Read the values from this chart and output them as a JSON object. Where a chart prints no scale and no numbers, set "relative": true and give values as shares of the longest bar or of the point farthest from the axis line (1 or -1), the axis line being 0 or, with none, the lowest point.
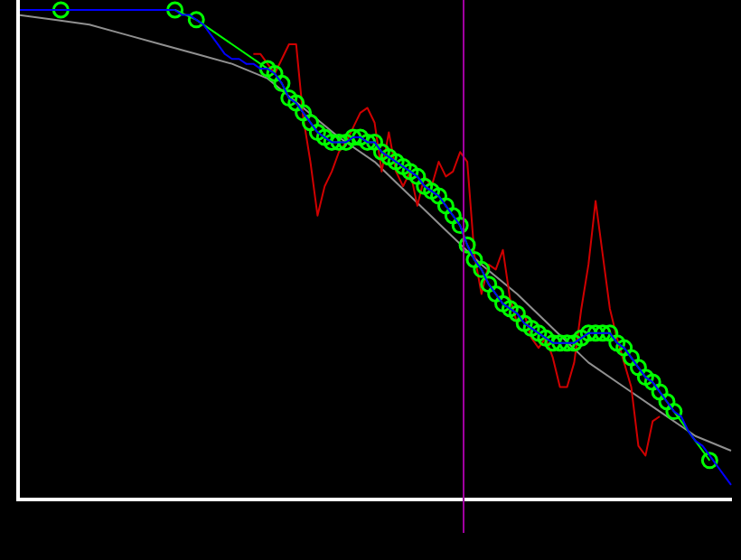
{
  "chart_data": {
    "type": "line",
    "relative": true,
    "grid": false,
    "legend": false,
    "categories": [
      null,
      null,
      null,
      null,
      null,
      null,
      null,
      null,
      null,
      null,
      null,
      null,
      null,
      null,
      null,
      null,
      null,
      null,
      null,
      null,
      null,
      null,
      null,
      null,
      null,
      null,
      null,
      null,
      null,
      null,
      null,
      null,
      null,
      null,
      null,
      null,
      null,
      null,
      null,
      null,
      null,
      null,
      null,
      null,
      null,
      null,
      null,
      null,
      null,
      null,
      null,
      null,
      null,
      null,
      null,
      null,
      null,
      null,
      null,
      null,
      null,
      null,
      null,
      null,
      null,
      null,
      null,
      null,
      null,
      null,
      null,
      null,
      null,
      null,
      null,
      null,
      null,
      null,
      null,
      null,
      null,
      null,
      null,
      null,
      null,
      null,
      null,
      null,
      null,
      null,
      null,
      null,
      null,
      null,
      null,
      null,
      null,
      null,
      null,
      null,
      null
    ],
    "series": [
      {
        "color": "#909090",
        "marker": "none",
        "values": [
          0.99,
          null,
          null,
          null,
          null,
          0.98,
          null,
          null,
          null,
          null,
          0.97,
          null,
          null,
          null,
          null,
          0.95,
          null,
          null,
          null,
          null,
          0.93,
          null,
          null,
          null,
          null,
          0.91,
          null,
          null,
          null,
          null,
          0.89,
          null,
          null,
          null,
          null,
          0.86,
          null,
          null,
          null,
          null,
          0.8,
          null,
          null,
          null,
          null,
          0.74,
          null,
          null,
          null,
          null,
          0.69,
          null,
          null,
          null,
          null,
          0.62,
          null,
          null,
          null,
          null,
          0.55,
          null,
          null,
          null,
          null,
          0.48,
          null,
          null,
          null,
          null,
          0.42,
          null,
          null,
          null,
          null,
          0.35,
          null,
          null,
          null,
          null,
          0.28,
          null,
          null,
          null,
          null,
          0.23,
          null,
          null,
          null,
          null,
          0.18,
          null,
          null,
          null,
          null,
          0.13,
          null,
          null,
          null,
          null,
          0.1
        ]
      },
      {
        "color": "#d00000",
        "marker": "none",
        "values": [
          null,
          null,
          null,
          null,
          null,
          null,
          null,
          null,
          null,
          null,
          null,
          null,
          null,
          null,
          null,
          null,
          null,
          null,
          null,
          null,
          null,
          null,
          null,
          null,
          null,
          null,
          null,
          null,
          null,
          null,
          null,
          null,
          null,
          0.91,
          0.91,
          0.89,
          0.87,
          0.9,
          0.93,
          0.93,
          0.78,
          0.69,
          0.58,
          0.64,
          0.67,
          0.71,
          0.73,
          0.76,
          0.79,
          0.8,
          0.77,
          0.67,
          0.75,
          0.67,
          0.64,
          0.67,
          0.6,
          0.66,
          0.64,
          0.69,
          0.66,
          0.67,
          0.71,
          0.69,
          0.5,
          0.42,
          0.48,
          0.47,
          0.51,
          0.41,
          0.36,
          0.38,
          0.33,
          0.31,
          0.33,
          0.29,
          0.23,
          0.23,
          0.28,
          0.39,
          0.48,
          0.61,
          0.5,
          0.39,
          0.33,
          0.28,
          0.23,
          0.11,
          0.09,
          0.16,
          0.17,
          null,
          null,
          null,
          null,
          null,
          null,
          null,
          null,
          null,
          null
        ]
      },
      {
        "color": "#00ff00",
        "marker": "circle",
        "values": [
          null,
          null,
          null,
          null,
          null,
          null,
          1,
          null,
          null,
          null,
          null,
          null,
          null,
          null,
          null,
          null,
          null,
          null,
          null,
          null,
          null,
          null,
          1,
          null,
          null,
          0.98,
          null,
          null,
          null,
          null,
          null,
          null,
          null,
          null,
          null,
          0.88,
          0.87,
          0.85,
          0.82,
          0.81,
          0.79,
          0.77,
          0.75,
          0.74,
          0.73,
          0.73,
          0.73,
          0.74,
          0.74,
          0.73,
          0.73,
          0.71,
          0.7,
          0.69,
          0.68,
          0.67,
          0.66,
          0.64,
          0.63,
          0.62,
          0.6,
          0.58,
          0.56,
          0.52,
          0.49,
          0.47,
          0.44,
          0.42,
          0.4,
          0.39,
          0.38,
          0.36,
          0.35,
          0.34,
          0.33,
          0.32,
          0.32,
          0.32,
          0.32,
          0.33,
          0.34,
          0.34,
          0.34,
          0.34,
          0.32,
          0.31,
          0.29,
          0.27,
          0.25,
          0.24,
          0.22,
          0.2,
          0.18,
          null,
          null,
          null,
          null,
          0.08,
          null,
          null,
          null
        ]
      },
      {
        "color": "#0000ff",
        "marker": "none",
        "values": [
          1,
          1,
          1,
          1,
          1,
          1,
          1,
          1,
          1,
          1,
          1,
          1,
          1,
          1,
          1,
          1,
          1,
          1,
          1,
          1,
          1,
          1,
          1,
          0.99,
          0.99,
          0.98,
          0.97,
          0.95,
          0.93,
          0.91,
          0.9,
          0.9,
          0.89,
          0.89,
          0.88,
          0.88,
          0.87,
          0.85,
          0.82,
          0.81,
          0.79,
          0.77,
          0.75,
          0.74,
          0.73,
          0.73,
          0.73,
          0.74,
          0.74,
          0.73,
          0.73,
          0.71,
          0.7,
          0.69,
          0.68,
          0.67,
          0.66,
          0.64,
          0.63,
          0.62,
          0.6,
          0.58,
          0.56,
          0.52,
          0.49,
          0.47,
          0.44,
          0.42,
          0.4,
          0.39,
          0.38,
          0.36,
          0.35,
          0.34,
          0.33,
          0.32,
          0.32,
          0.32,
          0.32,
          0.33,
          0.34,
          0.34,
          0.34,
          0.34,
          0.32,
          0.31,
          0.29,
          0.27,
          0.25,
          0.24,
          0.22,
          0.2,
          0.18,
          0.17,
          0.14,
          0.12,
          0.11,
          0.09,
          0.07,
          0.05,
          0.03
        ]
      }
    ]
  }
}
